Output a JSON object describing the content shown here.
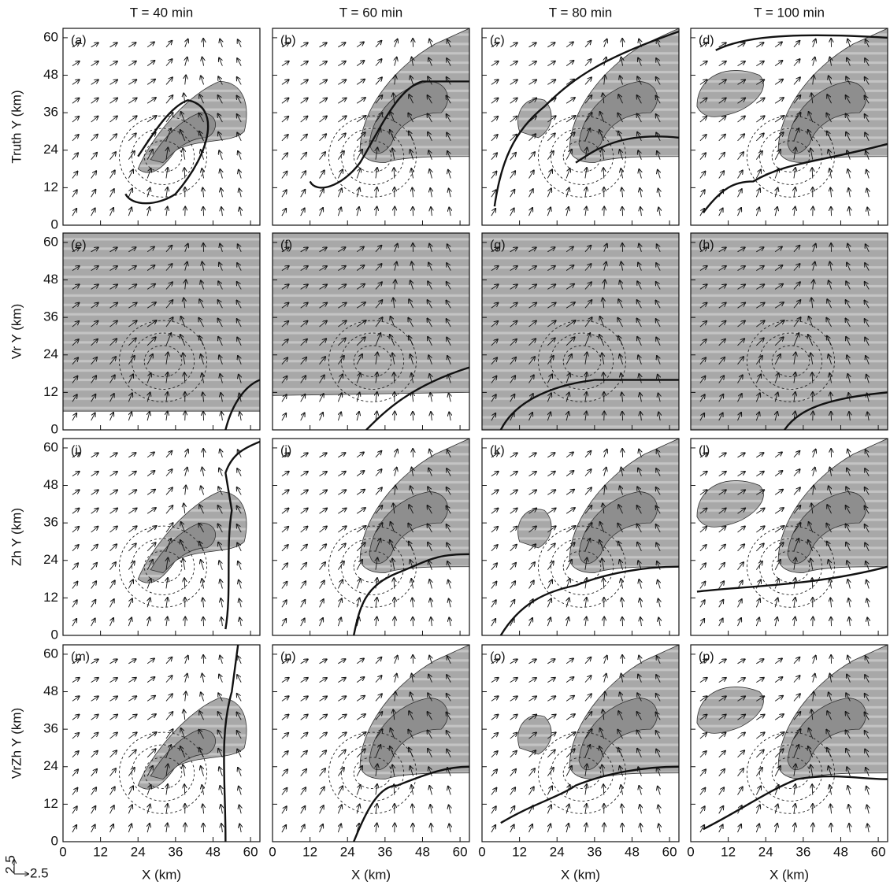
{
  "columns": [
    "T = 40 min",
    "T = 60 min",
    "T = 80 min",
    "T = 100 min"
  ],
  "rows": [
    "Truth Y (km)",
    "Vr Y (km)",
    "Zh Y (km)",
    "VrZh Y (km)"
  ],
  "panels": [
    "(a)",
    "(b)",
    "(c)",
    "(d)",
    "(e)",
    "(f)",
    "(g)",
    "(h)",
    "(i)",
    "(j)",
    "(k)",
    "(l)",
    "(m)",
    "(n)",
    "(o)",
    "(p)"
  ],
  "x_label": "X (km)",
  "xlim": [
    0,
    63
  ],
  "ylim": [
    0,
    63
  ],
  "xticks": [
    0,
    12,
    24,
    36,
    48,
    60
  ],
  "yticks": [
    0,
    12,
    24,
    36,
    48,
    60
  ],
  "vector_key": {
    "x": "2.5",
    "y": "2.5"
  }
}
